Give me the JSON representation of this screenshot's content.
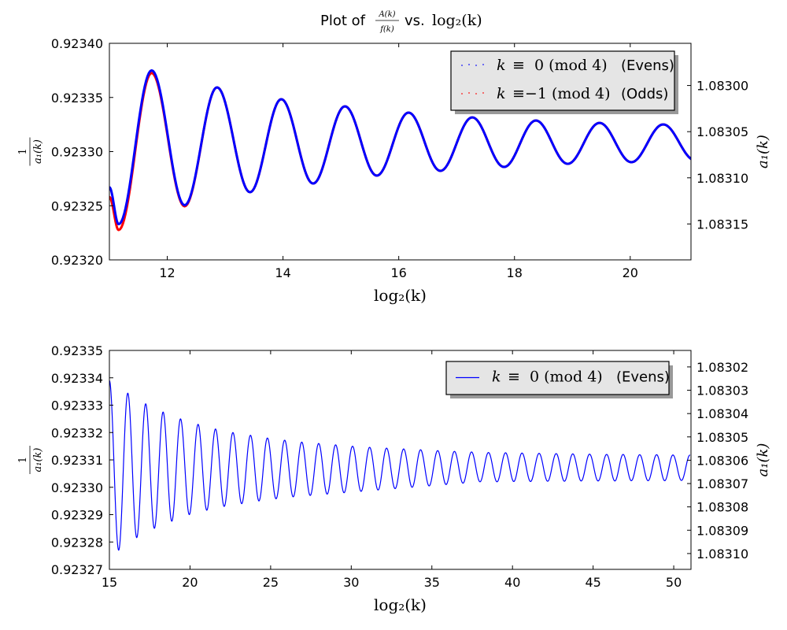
{
  "title": {
    "prefix": "Plot of",
    "num": "A(k)",
    "den": "f(k)",
    "mid": "vs.",
    "expr": "log₂(k)"
  },
  "chart_data": [
    {
      "type": "line",
      "xlabel": "log₂(k)",
      "ylabel": {
        "num": "1",
        "den": "a₁(k)"
      },
      "ylabel_right": "a₁(k)",
      "xlim": [
        11.0,
        21.05
      ],
      "ylim": [
        0.9232,
        0.9234
      ],
      "xticks": [
        "12",
        "14",
        "16",
        "18",
        "20"
      ],
      "yticks": [
        "0.92320",
        "0.92325",
        "0.92330",
        "0.92335",
        "0.92340"
      ],
      "yticks_right": [
        "1.08300",
        "1.08305",
        "1.08310",
        "1.08315"
      ],
      "right_axis": "reciprocal",
      "legend_position": "top-right",
      "series": [
        {
          "name": "odds",
          "legend": {
            "var": "k",
            "expr": "≡−1 (mod 4)",
            "label": "(Odds)"
          },
          "color": "#ff0000",
          "style": "dotted-markers",
          "extrema": [
            [
              11.0,
              0.923258
            ],
            [
              11.16,
              0.9232276
            ],
            [
              11.73,
              0.9233726
            ],
            [
              12.3,
              0.9232495
            ],
            [
              12.86,
              0.9233593
            ],
            [
              13.43,
              0.9232625
            ],
            [
              13.97,
              0.9233484
            ],
            [
              14.52,
              0.9232705
            ],
            [
              15.07,
              0.9233418
            ],
            [
              15.62,
              0.9232778
            ],
            [
              16.17,
              0.923336
            ],
            [
              16.72,
              0.9232822
            ],
            [
              17.27,
              0.9233316
            ],
            [
              17.82,
              0.9232858
            ],
            [
              18.37,
              0.9233287
            ],
            [
              18.92,
              0.9232887
            ],
            [
              19.47,
              0.9233265
            ],
            [
              20.02,
              0.9232902
            ],
            [
              20.57,
              0.9233251
            ],
            [
              21.12,
              0.923292
            ]
          ]
        },
        {
          "name": "evens",
          "legend": {
            "var": "k",
            "expr": "≡  0 (mod 4)",
            "label": "(Evens)"
          },
          "color": "#0000ff",
          "style": "dotted-markers",
          "extrema": [
            [
              11.0,
              0.923267
            ],
            [
              11.16,
              0.923233
            ],
            [
              11.73,
              0.923375
            ],
            [
              12.3,
              0.9232505
            ],
            [
              12.86,
              0.9233593
            ],
            [
              13.43,
              0.9232625
            ],
            [
              13.97,
              0.9233484
            ],
            [
              14.52,
              0.9232705
            ],
            [
              15.07,
              0.9233418
            ],
            [
              15.62,
              0.9232778
            ],
            [
              16.17,
              0.923336
            ],
            [
              16.72,
              0.9232822
            ],
            [
              17.27,
              0.9233316
            ],
            [
              17.82,
              0.9232858
            ],
            [
              18.37,
              0.9233287
            ],
            [
              18.92,
              0.9232887
            ],
            [
              19.47,
              0.9233265
            ],
            [
              20.02,
              0.9232902
            ],
            [
              20.57,
              0.9233251
            ],
            [
              21.12,
              0.923292
            ]
          ]
        }
      ]
    },
    {
      "type": "line",
      "xlabel": "log₂(k)",
      "ylabel": {
        "num": "1",
        "den": "a₁(k)"
      },
      "ylabel_right": "a₁(k)",
      "xlim": [
        15.0,
        51.07
      ],
      "ylim": [
        0.92327,
        0.92335
      ],
      "xticks": [
        "15",
        "20",
        "25",
        "30",
        "35",
        "40",
        "45",
        "50"
      ],
      "yticks": [
        "0.92327",
        "0.92328",
        "0.92329",
        "0.92330",
        "0.92331",
        "0.92332",
        "0.92333",
        "0.92334",
        "0.92335"
      ],
      "yticks_right": [
        "1.08302",
        "1.08303",
        "1.08304",
        "1.08305",
        "1.08306",
        "1.08307",
        "1.08308",
        "1.08309",
        "1.08310"
      ],
      "right_axis": "reciprocal",
      "legend_position": "top-right",
      "series": [
        {
          "name": "evens",
          "legend": {
            "var": "k",
            "expr": "≡  0 (mod 4)",
            "label": "(Evens)"
          },
          "color": "#0000ff",
          "style": "line",
          "extrema": [
            [
              15.0,
              0.923339
            ],
            [
              15.575,
              0.923277
            ],
            [
              16.14,
              0.9233344
            ],
            [
              16.695,
              0.9232816
            ],
            [
              17.25,
              0.9233305
            ],
            [
              17.79,
              0.923285
            ],
            [
              18.33,
              0.9233275
            ],
            [
              18.87,
              0.9232876
            ],
            [
              19.41,
              0.923325
            ],
            [
              19.955,
              0.92329
            ],
            [
              20.5,
              0.923323
            ],
            [
              21.04,
              0.9232916
            ],
            [
              21.58,
              0.9233213
            ],
            [
              22.12,
              0.923293
            ],
            [
              22.66,
              0.92332
            ],
            [
              23.205,
              0.923294
            ],
            [
              23.75,
              0.923319
            ],
            [
              24.275,
              0.923295
            ],
            [
              24.8,
              0.923318
            ],
            [
              25.335,
              0.9232958
            ],
            [
              25.87,
              0.9233172
            ],
            [
              26.4,
              0.9232965
            ],
            [
              26.93,
              0.9233165
            ],
            [
              27.455,
              0.923297
            ],
            [
              27.98,
              0.923316
            ],
            [
              28.505,
              0.9232975
            ],
            [
              29.03,
              0.9233155
            ],
            [
              29.555,
              0.923298
            ],
            [
              30.08,
              0.923315
            ],
            [
              30.61,
              0.9232985
            ],
            [
              31.14,
              0.9233146
            ],
            [
              31.665,
              0.923299
            ],
            [
              32.19,
              0.9233143
            ],
            [
              32.72,
              0.9232995
            ],
            [
              33.25,
              0.923314
            ],
            [
              33.775,
              0.9233
            ],
            [
              34.3,
              0.9233137
            ],
            [
              34.83,
              0.9233005
            ],
            [
              35.36,
              0.9233134
            ],
            [
              35.88,
              0.923301
            ],
            [
              36.4,
              0.9233131
            ],
            [
              36.93,
              0.9233015
            ],
            [
              37.46,
              0.9233129
            ],
            [
              37.985,
              0.923302
            ],
            [
              38.51,
              0.9233127
            ],
            [
              39.04,
              0.923302
            ],
            [
              39.57,
              0.9233126
            ],
            [
              40.08,
              0.9233021
            ],
            [
              40.59,
              0.9233125
            ],
            [
              41.12,
              0.9233021
            ],
            [
              41.65,
              0.9233124
            ],
            [
              42.18,
              0.9233022
            ],
            [
              42.71,
              0.9233123
            ],
            [
              43.22,
              0.9233022
            ],
            [
              43.74,
              0.9233122
            ],
            [
              44.26,
              0.9233023
            ],
            [
              44.78,
              0.9233121
            ],
            [
              45.31,
              0.9233023
            ],
            [
              45.84,
              0.923312
            ],
            [
              46.35,
              0.9233023
            ],
            [
              46.86,
              0.923312
            ],
            [
              47.37,
              0.9233024
            ],
            [
              47.89,
              0.9233119
            ],
            [
              48.41,
              0.9233024
            ],
            [
              48.94,
              0.9233119
            ],
            [
              49.44,
              0.9233024
            ],
            [
              49.95,
              0.9233118
            ],
            [
              50.48,
              0.9233025
            ],
            [
              51.01,
              0.9233118
            ]
          ]
        }
      ]
    }
  ]
}
